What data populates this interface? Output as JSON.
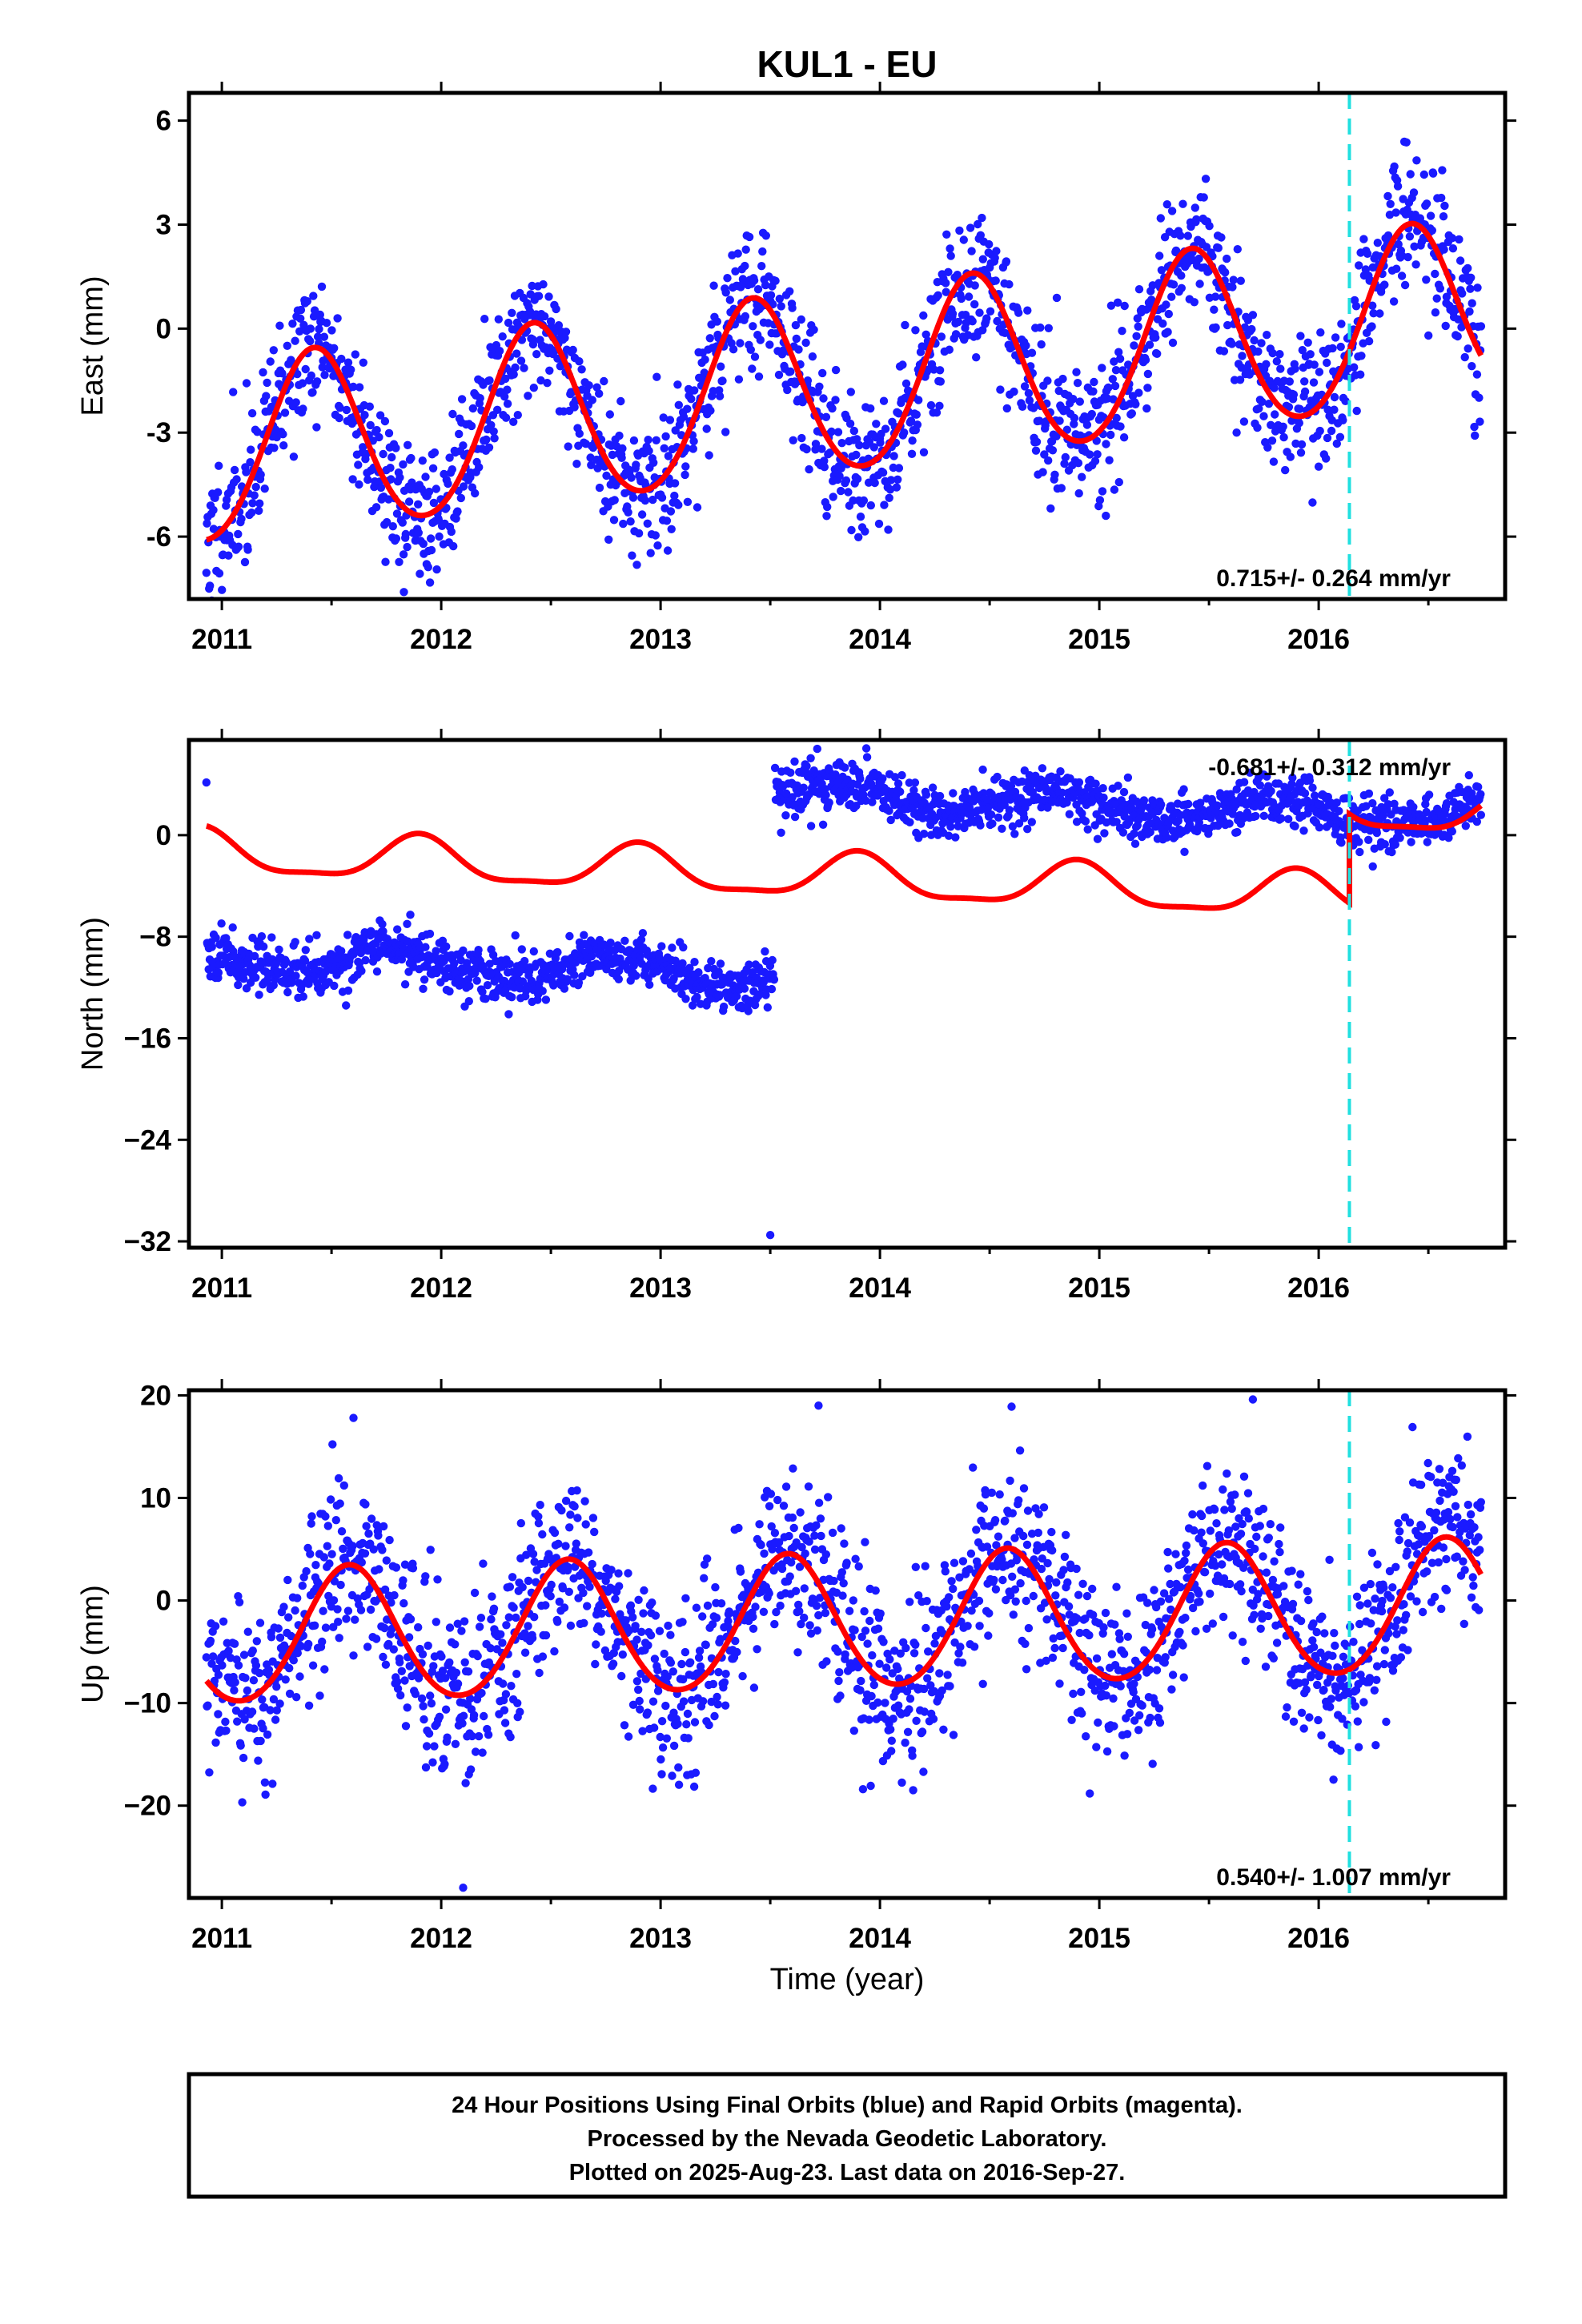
{
  "chart_data": {
    "type": "scatter",
    "title": "KUL1 - EU",
    "xlabel": "Time (year)",
    "x_ticks": [
      "2011",
      "2012",
      "2013",
      "2014",
      "2015",
      "2016"
    ],
    "xlim": [
      2010.85,
      2016.85
    ],
    "data_span": [
      2010.93,
      2016.74
    ],
    "equipment_change_epoch": 2016.14,
    "colors": {
      "data": "#1a1aff",
      "model": "#ff0000",
      "offset_line": "#20e0e0",
      "frame": "#000000"
    },
    "panels": [
      {
        "id": "east",
        "ylabel": "East (mm)",
        "ylim": [
          -7.8,
          6.8
        ],
        "y_ticks": [
          6,
          3,
          0,
          -3,
          -6
        ],
        "y_tick_labels": [
          "6",
          "3",
          "0",
          "-3",
          "-6"
        ],
        "rate_text": "0.715+/- 0.264 mm/yr",
        "rate_position": "bottom-right",
        "model": {
          "intercept": -1.5,
          "trend": 0.715,
          "annual_amp": 2.6,
          "annual_peak": 0.42,
          "semiannual_amp": 0.2,
          "jump_epoch": null,
          "jump": 0,
          "scatter_sd": 1.0
        },
        "noise_seed": 11,
        "num_points": 1900,
        "outliers": [
          [
            2015.03,
            -5.4
          ],
          [
            2011.83,
            -7.6
          ]
        ]
      },
      {
        "id": "north",
        "ylabel": "North (mm)",
        "ylim": [
          -32.5,
          7.5
        ],
        "y_ticks": [
          0,
          -8,
          -16,
          -24,
          -32
        ],
        "y_tick_labels": [
          "0",
          "−8",
          "−16",
          "−24",
          "−32"
        ],
        "rate_text": "-0.681+/- 0.312 mm/yr",
        "rate_position": "top-right",
        "model": {
          "intercept": -3.5,
          "trend": -0.681,
          "annual_amp": 1.7,
          "annual_peak": 0.9,
          "semiannual_amp": 0.5,
          "jump_epoch": 2016.14,
          "jump": 7.0,
          "scatter_sd": 1.1
        },
        "segments": [
          {
            "start": 2010.93,
            "end": 2013.52,
            "base": -9.5,
            "slope": -0.6,
            "annual_amp": 1.0,
            "sd": 1.0
          },
          {
            "start": 2013.52,
            "end": 2016.74,
            "base": 3.2,
            "slope": -0.6,
            "annual_amp": 1.0,
            "sd": 1.0
          }
        ],
        "noise_seed": 23,
        "num_points": 1900,
        "outliers": [
          [
            2013.5,
            -31.5
          ]
        ]
      },
      {
        "id": "up",
        "ylabel": "Up (mm)",
        "ylim": [
          -29,
          20.5
        ],
        "y_ticks": [
          20,
          10,
          0,
          -10,
          -20
        ],
        "y_tick_labels": [
          "20",
          "10",
          "0",
          "−10",
          "−20"
        ],
        "rate_text": "0.540+/- 1.007 mm/yr",
        "rate_position": "bottom-right",
        "model": {
          "intercept": -2.2,
          "trend": 0.54,
          "annual_amp": 6.5,
          "annual_peak": 0.58,
          "semiannual_amp": 0.5,
          "jump_epoch": null,
          "jump": 0,
          "scatter_sd": 4.2
        },
        "noise_seed": 37,
        "num_points": 1900,
        "outliers": [
          [
            2012.1,
            -28
          ],
          [
            2013.72,
            19
          ],
          [
            2015.7,
            19.6
          ],
          [
            2011.6,
            17.8
          ],
          [
            2014.6,
            18.9
          ]
        ]
      }
    ]
  },
  "footer": {
    "line1": "24 Hour Positions Using Final Orbits (blue) and Rapid Orbits (magenta).",
    "line2": "Processed by the Nevada Geodetic Laboratory.",
    "line3": "Plotted on 2025-Aug-23. Last data on 2016-Sep-27."
  }
}
